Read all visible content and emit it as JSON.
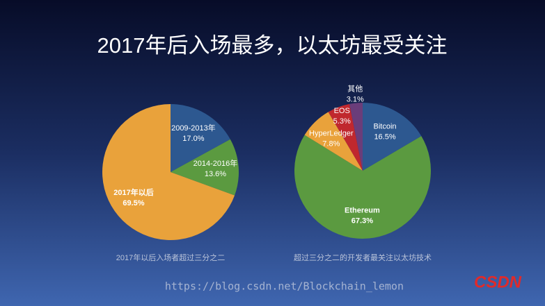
{
  "title": "2017年后入场最多，以太坊最受关注",
  "chart_data": [
    {
      "type": "pie",
      "caption": "2017年以后入场者超过三分之二",
      "categories": [
        "2009-2013年",
        "2014-2016年",
        "2017年以后"
      ],
      "values": [
        17.0,
        13.6,
        69.5
      ],
      "value_labels": [
        "17.0%",
        "13.6%",
        "69.5%"
      ],
      "colors": [
        "#2d5890",
        "#5b9a40",
        "#e9a23b"
      ]
    },
    {
      "type": "pie",
      "caption": "超过三分之二的开发者最关注以太坊技术",
      "categories": [
        "Bitcoin",
        "Ethereum",
        "HyperLedger",
        "EOS",
        "其他"
      ],
      "values": [
        16.5,
        67.3,
        7.8,
        5.3,
        3.1
      ],
      "value_labels": [
        "16.5%",
        "67.3%",
        "7.8%",
        "5.3%",
        "3.1%"
      ],
      "colors": [
        "#2d5890",
        "#5b9a40",
        "#e9a23b",
        "#c0282e",
        "#6a3d7a"
      ]
    }
  ],
  "watermark": "https://blog.csdn.net/Blockchain_lemon",
  "logo": "CSDN"
}
